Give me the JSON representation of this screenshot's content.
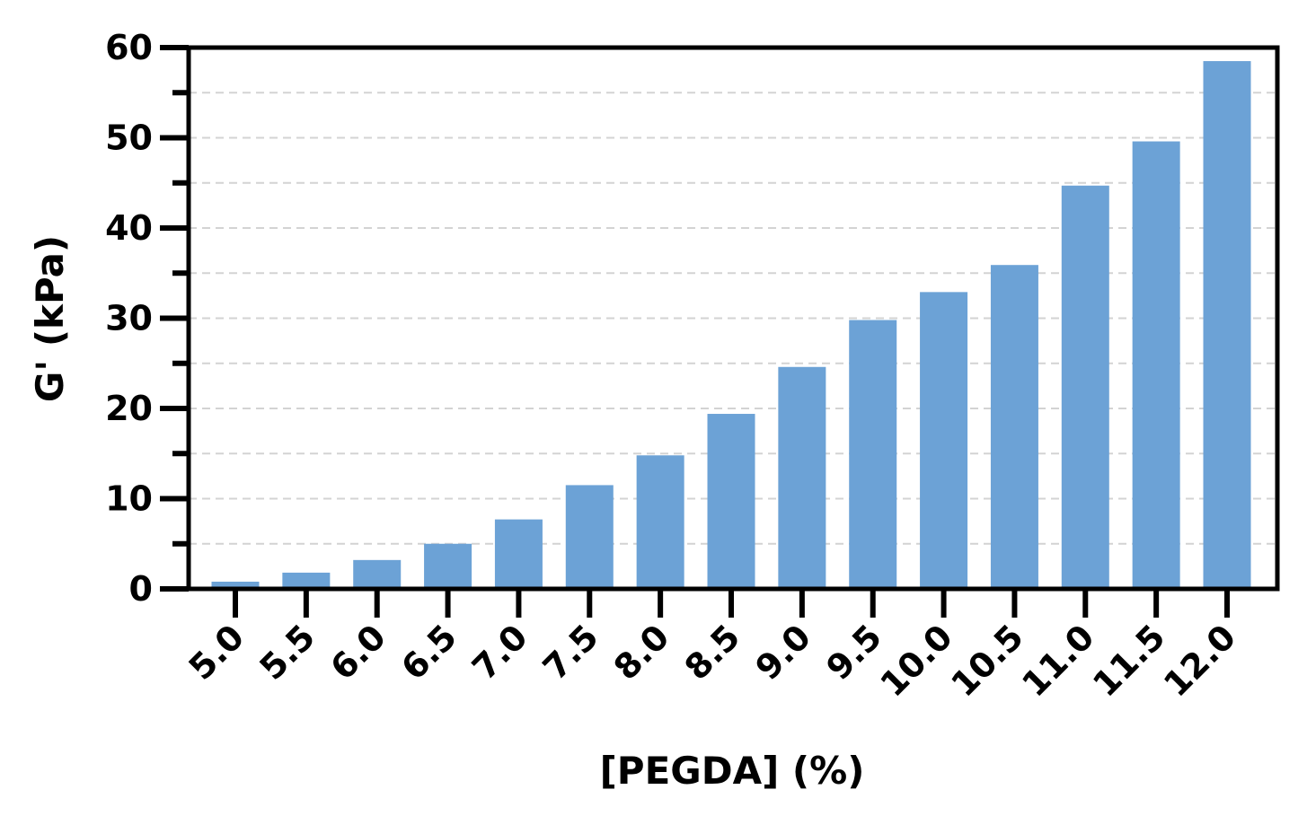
{
  "chart_data": {
    "type": "bar",
    "title": "",
    "xlabel": "[PEGDA] (%)",
    "ylabel": "G' (kPa)",
    "categories": [
      "5.0",
      "5.5",
      "6.0",
      "6.5",
      "7.0",
      "7.5",
      "8.0",
      "8.5",
      "9.0",
      "9.5",
      "10.0",
      "10.5",
      "11.0",
      "11.5",
      "12.0"
    ],
    "values": [
      0.8,
      1.8,
      3.2,
      5.0,
      7.7,
      11.5,
      14.8,
      19.4,
      24.6,
      29.8,
      32.9,
      35.9,
      44.7,
      49.6,
      58.5
    ],
    "ylim": [
      0,
      60
    ],
    "yticks": [
      0,
      10,
      20,
      30,
      40,
      50,
      60
    ],
    "grid": "horizontal dashed",
    "bar_color": "#6ca2d6"
  }
}
